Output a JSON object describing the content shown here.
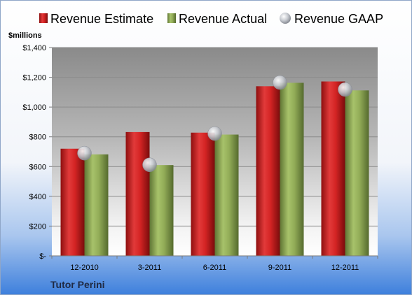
{
  "chart_data": {
    "type": "bar",
    "unit_label": "$millions",
    "company": "Tutor Perini",
    "categories": [
      "12-2010",
      "3-2011",
      "6-2011",
      "9-2011",
      "12-2011"
    ],
    "series": [
      {
        "name": "Revenue Estimate",
        "kind": "bar",
        "color": "#cc1f1f",
        "values": [
          720,
          832,
          828,
          1140,
          1172
        ]
      },
      {
        "name": "Revenue Actual",
        "kind": "bar",
        "color": "#8fa856",
        "values": [
          682,
          610,
          815,
          1163,
          1112
        ]
      },
      {
        "name": "Revenue GAAP",
        "kind": "marker",
        "color": "#b8bcc4",
        "values": [
          690,
          612,
          822,
          1165,
          1118
        ]
      }
    ],
    "ylim": [
      0,
      1400
    ],
    "yticks": [
      0,
      200,
      400,
      600,
      800,
      1000,
      1200,
      1400
    ],
    "ytick_labels": [
      "$-",
      "$200",
      "$400",
      "$600",
      "$800",
      "$1,000",
      "$1,200",
      "$1,400"
    ],
    "grid": true,
    "legend_position": "top"
  }
}
